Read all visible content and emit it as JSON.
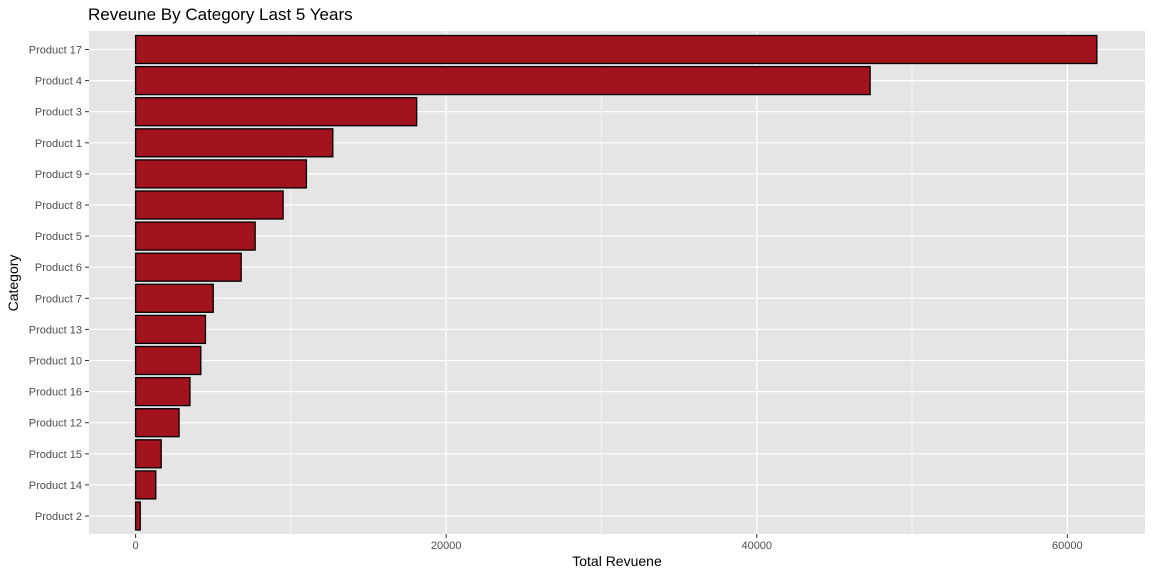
{
  "chart_data": {
    "type": "bar",
    "orientation": "horizontal",
    "title": "Reveune By Category Last 5 Years",
    "xlabel": "Total Revuene",
    "ylabel": "Category",
    "categories": [
      "Product 17",
      "Product 4",
      "Product 3",
      "Product 1",
      "Product 9",
      "Product 8",
      "Product 5",
      "Product 6",
      "Product 7",
      "Product 13",
      "Product 10",
      "Product 16",
      "Product 12",
      "Product 15",
      "Product 14",
      "Product 2"
    ],
    "values": [
      61900,
      47300,
      18100,
      12700,
      11000,
      9500,
      7700,
      6800,
      5000,
      4500,
      4200,
      3500,
      2800,
      1650,
      1300,
      300
    ],
    "xlim": [
      -3000,
      65000
    ],
    "xticks": [
      0,
      20000,
      40000,
      60000
    ],
    "xtick_labels": [
      "0",
      "20000",
      "40000",
      "60000"
    ],
    "grid": true,
    "bar_fill": "#a3131e",
    "bar_stroke": "#000000",
    "panel_background": "#e5e5e5",
    "grid_color": "#ffffff"
  }
}
